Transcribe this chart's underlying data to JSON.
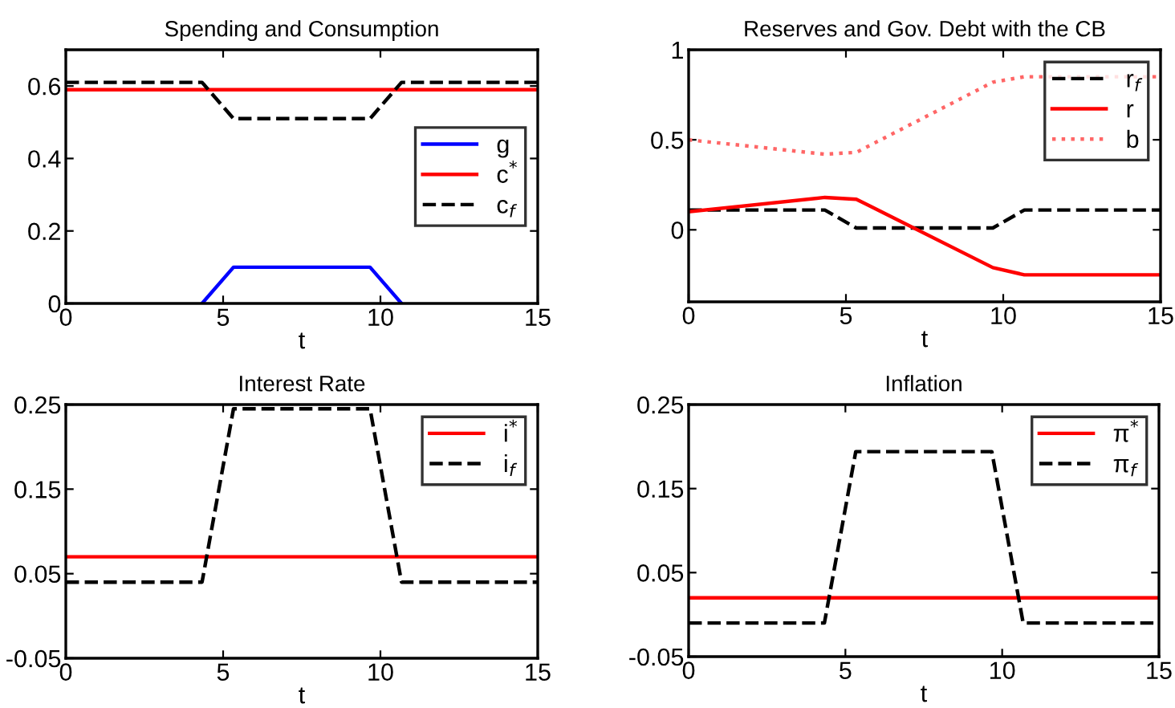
{
  "chart_data": [
    {
      "type": "line",
      "title": "Spending and Consumption",
      "xlabel": "t",
      "x": [
        0,
        4.33,
        5.33,
        9.67,
        10.67,
        15
      ],
      "xlim": [
        0,
        15
      ],
      "xticks": [
        0,
        5,
        10,
        15
      ],
      "ylim": [
        0,
        0.7
      ],
      "yticks": [
        0,
        0.2,
        0.4,
        0.6
      ],
      "legend": "center right",
      "series": [
        {
          "name": "g",
          "color": "#0000ff",
          "line_style": "solid",
          "x": [
            4.33,
            5.33,
            9.67,
            10.67
          ],
          "values": [
            0,
            0.1,
            0.1,
            0
          ]
        },
        {
          "name": "c$^{*}$",
          "color": "#ff0000",
          "line_style": "solid",
          "values": [
            0.59,
            0.59,
            0.59,
            0.59,
            0.59,
            0.59
          ]
        },
        {
          "name": "c$_{f}$",
          "color": "#000000",
          "line_style": "dashed",
          "values": [
            0.61,
            0.61,
            0.51,
            0.51,
            0.61,
            0.61
          ]
        }
      ]
    },
    {
      "type": "line",
      "title": "Reserves and Gov. Debt with the CB",
      "xlabel": "t",
      "x": [
        0,
        4.33,
        5.33,
        9.67,
        10.67,
        15
      ],
      "xlim": [
        0,
        15
      ],
      "xticks": [
        0,
        5,
        10,
        15
      ],
      "ylim": [
        -0.4,
        1
      ],
      "yticks": [
        0,
        0.5,
        1
      ],
      "legend": "upper right",
      "series": [
        {
          "name": "r$_{f}$",
          "color": "#000000",
          "line_style": "dashed",
          "values": [
            0.11,
            0.11,
            0.01,
            0.01,
            0.11,
            0.11
          ]
        },
        {
          "name": "r",
          "color": "#ff0000",
          "line_style": "solid",
          "values": [
            0.1,
            0.18,
            0.17,
            -0.21,
            -0.25,
            -0.25
          ]
        },
        {
          "name": "b",
          "color": "#ff6666",
          "line_style": "dotted",
          "values": [
            0.5,
            0.42,
            0.43,
            0.82,
            0.85,
            0.85
          ]
        }
      ]
    },
    {
      "type": "line",
      "title": "Interest Rate",
      "xlabel": "t",
      "x": [
        0,
        4.33,
        5.33,
        9.67,
        10.67,
        15
      ],
      "xlim": [
        0,
        15
      ],
      "xticks": [
        0,
        5,
        10,
        15
      ],
      "ylim": [
        -0.05,
        0.25
      ],
      "yticks": [
        -0.05,
        0.05,
        0.15,
        0.25
      ],
      "legend": "upper right",
      "series": [
        {
          "name": "i$^{*}$",
          "color": "#ff0000",
          "line_style": "solid",
          "values": [
            0.07,
            0.07,
            0.07,
            0.07,
            0.07,
            0.07
          ]
        },
        {
          "name": "i$_{f}$",
          "color": "#000000",
          "line_style": "dashed",
          "values": [
            0.04,
            0.04,
            0.245,
            0.245,
            0.04,
            0.04
          ]
        }
      ]
    },
    {
      "type": "line",
      "title": "Inflation",
      "xlabel": "t",
      "x": [
        0,
        4.33,
        5.33,
        9.67,
        10.67,
        15
      ],
      "xlim": [
        0,
        15
      ],
      "xticks": [
        0,
        5,
        10,
        15
      ],
      "ylim": [
        -0.05,
        0.25
      ],
      "yticks": [
        -0.05,
        0.05,
        0.15,
        0.25
      ],
      "legend": "upper right",
      "series": [
        {
          "name": "π$^{*}$",
          "color": "#ff0000",
          "line_style": "solid",
          "values": [
            0.02,
            0.02,
            0.02,
            0.02,
            0.02,
            0.02
          ]
        },
        {
          "name": "π$_{f}$",
          "color": "#000000",
          "line_style": "dashed",
          "values": [
            -0.01,
            -0.01,
            0.194,
            0.194,
            -0.01,
            -0.01
          ]
        }
      ]
    }
  ]
}
